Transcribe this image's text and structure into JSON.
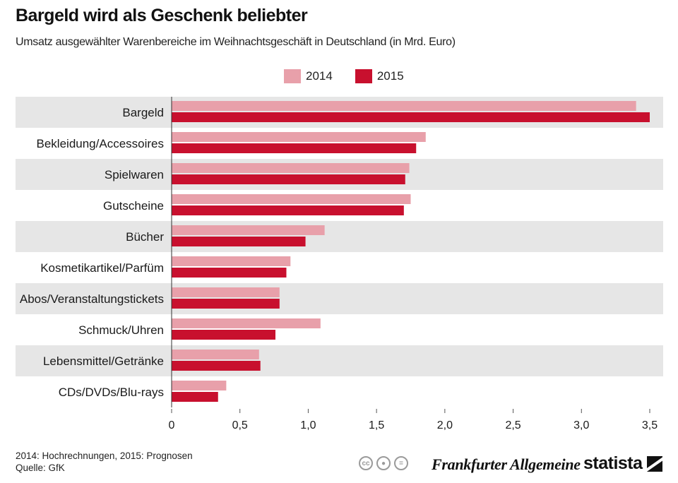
{
  "header": {
    "title": "Bargeld wird als Geschenk beliebter",
    "subtitle": "Umsatz ausgewählter Warenbereiche im Weihnachtsgeschäft in Deutschland (in Mrd. Euro)"
  },
  "legend": {
    "items": [
      {
        "label": "2014",
        "color": "#e8a0aa"
      },
      {
        "label": "2015",
        "color": "#c8102e"
      }
    ]
  },
  "chart_data": {
    "type": "bar",
    "orientation": "horizontal",
    "title": "Bargeld wird als Geschenk beliebter",
    "subtitle": "Umsatz ausgewählter Warenbereiche im Weihnachtsgeschäft in Deutschland (in Mrd. Euro)",
    "xlabel": "",
    "ylabel": "",
    "xlim": [
      0,
      3.5
    ],
    "ticks": [
      0,
      0.5,
      1.0,
      1.5,
      2.0,
      2.5,
      3.0,
      3.5
    ],
    "tick_labels": [
      "0",
      "0,5",
      "1,0",
      "1,5",
      "2,0",
      "2,5",
      "3,0",
      "3,5"
    ],
    "categories": [
      "Bargeld",
      "Bekleidung/Accessoires",
      "Spielwaren",
      "Gutscheine",
      "Bücher",
      "Kosmetikartikel/Parfüm",
      "Abos/Veranstaltungstickets",
      "Schmuck/Uhren",
      "Lebensmittel/Getränke",
      "CDs/DVDs/Blu-rays"
    ],
    "series": [
      {
        "name": "2014",
        "color": "#e8a0aa",
        "values": [
          3.4,
          1.86,
          1.74,
          1.75,
          1.12,
          0.87,
          0.79,
          1.09,
          0.64,
          0.4
        ]
      },
      {
        "name": "2015",
        "color": "#c8102e",
        "values": [
          3.5,
          1.79,
          1.71,
          1.7,
          0.98,
          0.84,
          0.79,
          0.76,
          0.65,
          0.34
        ]
      }
    ]
  },
  "footer": {
    "note": "2014: Hochrechnungen, 2015: Prognosen",
    "source": "Quelle: GfK",
    "license_icons": [
      "cc-icon",
      "by-icon",
      "nd-icon"
    ],
    "partner": "Frankfurter Allgemeine",
    "brand": "statista"
  }
}
